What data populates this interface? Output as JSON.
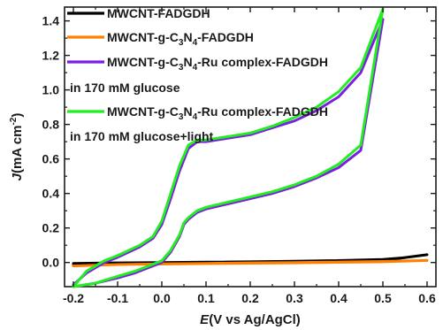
{
  "chart_data": {
    "type": "line",
    "xlabel": "E (V vs Ag/AgCl)",
    "ylabel": "J (mA cm-2)",
    "x_axis_label": {
      "italic": "E",
      "rest": "(V vs Ag/AgCl)"
    },
    "y_axis_label": {
      "italic": "J",
      "rest": "(mA cm",
      "sup": "-2",
      "end": ")"
    },
    "xlim": [
      -0.22,
      0.62
    ],
    "ylim": [
      -0.14,
      1.48
    ],
    "xticks": [
      "-0.2",
      "-0.1",
      "0.0",
      "0.1",
      "0.2",
      "0.3",
      "0.4",
      "0.5",
      "0.6"
    ],
    "xtick_values": [
      -0.2,
      -0.1,
      0.0,
      0.1,
      0.2,
      0.3,
      0.4,
      0.5,
      0.6
    ],
    "yticks": [
      "0.0",
      "0.2",
      "0.4",
      "0.6",
      "0.8",
      "1.0",
      "1.2",
      "1.4"
    ],
    "ytick_values": [
      0.0,
      0.2,
      0.4,
      0.6,
      0.8,
      1.0,
      1.2,
      1.4
    ],
    "grid": false,
    "legend_position": "top-left",
    "legend": [
      {
        "label": "MWCNT-FADGDH",
        "color": "#000000"
      },
      {
        "label": "MWCNT-g-C3N4-FADGDH",
        "color": "#ff8000"
      },
      {
        "label": "MWCNT-g-C3N4-Ru complex-FADGDH",
        "color": "#7a1fe0"
      },
      {
        "label": "in 170 mM glucose",
        "color": null
      },
      {
        "label": "MWCNT-g-C3N4-Ru complex-FADGDH",
        "color": "#22ee22"
      },
      {
        "label": "in 170 mM glucose+light",
        "color": null
      }
    ],
    "series": [
      {
        "name": "MWCNT-FADGDH",
        "color": "#000000",
        "x": [
          -0.2,
          -0.1,
          0.0,
          0.1,
          0.2,
          0.3,
          0.4,
          0.5,
          0.55,
          0.6,
          0.5,
          0.3,
          0.1,
          -0.1,
          -0.2
        ],
        "y": [
          -0.005,
          -0.002,
          0.0,
          0.002,
          0.004,
          0.007,
          0.011,
          0.018,
          0.028,
          0.045,
          0.012,
          0.004,
          0.0,
          -0.006,
          -0.01
        ]
      },
      {
        "name": "MWCNT-g-C3N4-FADGDH",
        "color": "#ff8000",
        "x": [
          -0.2,
          -0.1,
          0.0,
          0.1,
          0.2,
          0.3,
          0.4,
          0.5,
          0.6,
          0.5,
          0.3,
          0.1,
          -0.1,
          -0.2
        ],
        "y": [
          -0.02,
          -0.012,
          -0.008,
          -0.005,
          -0.002,
          0.0,
          0.003,
          0.006,
          0.012,
          0.004,
          -0.002,
          -0.006,
          -0.012,
          -0.02
        ]
      },
      {
        "name": "MWCNT-g-C3N4-Ru complex-FADGDH",
        "color": "#7a1fe0",
        "x": [
          -0.2,
          -0.17,
          -0.13,
          -0.1,
          -0.05,
          -0.02,
          0.0,
          0.02,
          0.04,
          0.06,
          0.08,
          0.1,
          0.15,
          0.2,
          0.25,
          0.3,
          0.35,
          0.4,
          0.45,
          0.5,
          0.45,
          0.4,
          0.35,
          0.3,
          0.25,
          0.2,
          0.15,
          0.1,
          0.08,
          0.06,
          0.05,
          0.04,
          0.02,
          0.0,
          -0.03,
          -0.06,
          -0.1,
          -0.15,
          -0.2
        ],
        "y": [
          -0.13,
          -0.06,
          0.0,
          0.03,
          0.09,
          0.14,
          0.22,
          0.37,
          0.53,
          0.66,
          0.7,
          0.7,
          0.72,
          0.74,
          0.78,
          0.82,
          0.88,
          0.96,
          1.1,
          1.41,
          0.65,
          0.55,
          0.49,
          0.44,
          0.4,
          0.37,
          0.34,
          0.31,
          0.29,
          0.25,
          0.22,
          0.15,
          0.06,
          0.0,
          -0.03,
          -0.06,
          -0.09,
          -0.12,
          -0.14
        ]
      },
      {
        "name": "MWCNT-g-C3N4-Ru complex-FADGDH",
        "color": "#22ee22",
        "x": [
          -0.2,
          -0.17,
          -0.13,
          -0.1,
          -0.05,
          -0.02,
          0.0,
          0.02,
          0.04,
          0.06,
          0.08,
          0.1,
          0.15,
          0.2,
          0.25,
          0.3,
          0.35,
          0.4,
          0.45,
          0.5,
          0.45,
          0.4,
          0.35,
          0.3,
          0.25,
          0.2,
          0.15,
          0.1,
          0.08,
          0.06,
          0.05,
          0.04,
          0.02,
          0.0,
          -0.03,
          -0.06,
          -0.1,
          -0.15,
          -0.2
        ],
        "y": [
          -0.14,
          -0.05,
          0.01,
          0.04,
          0.1,
          0.15,
          0.24,
          0.4,
          0.56,
          0.68,
          0.71,
          0.71,
          0.73,
          0.75,
          0.79,
          0.84,
          0.9,
          0.99,
          1.13,
          1.47,
          0.68,
          0.57,
          0.5,
          0.45,
          0.41,
          0.38,
          0.35,
          0.32,
          0.3,
          0.26,
          0.23,
          0.16,
          0.07,
          0.01,
          -0.02,
          -0.05,
          -0.08,
          -0.12,
          -0.14
        ]
      }
    ]
  },
  "colors": {
    "axis": "#1a1a1a",
    "background": "#ffffff"
  }
}
